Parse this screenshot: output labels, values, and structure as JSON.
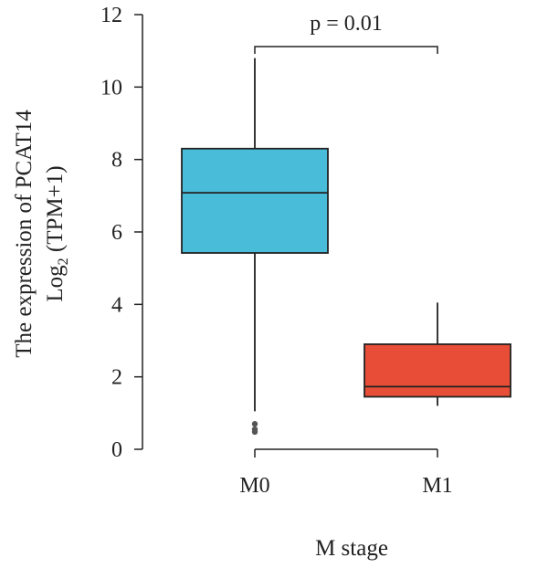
{
  "chart_data": {
    "type": "box",
    "categories": [
      "M0",
      "M1"
    ],
    "boxes": [
      {
        "category": "M0",
        "whisker_low": 1.05,
        "q1": 5.42,
        "median": 7.08,
        "q3": 8.3,
        "whisker_high": 10.8,
        "outliers": [
          0.48,
          0.55,
          0.7
        ],
        "color": "#48bcd9"
      },
      {
        "category": "M1",
        "whisker_low": 1.2,
        "q1": 1.45,
        "median": 1.73,
        "q3": 2.9,
        "whisker_high": 4.05,
        "outliers": [],
        "color": "#e84e37"
      }
    ],
    "xlabel": "M stage",
    "ylabel_line1": "The expression of PCAT14",
    "ylabel_line2_base": "Log",
    "ylabel_line2_sub": "2",
    "ylabel_line2_rest": " (TPM+1)",
    "ylim": [
      0,
      12
    ],
    "yticks": [
      0,
      2,
      4,
      6,
      8,
      10,
      12
    ],
    "annotation": "p = 0.01",
    "grid": false
  }
}
